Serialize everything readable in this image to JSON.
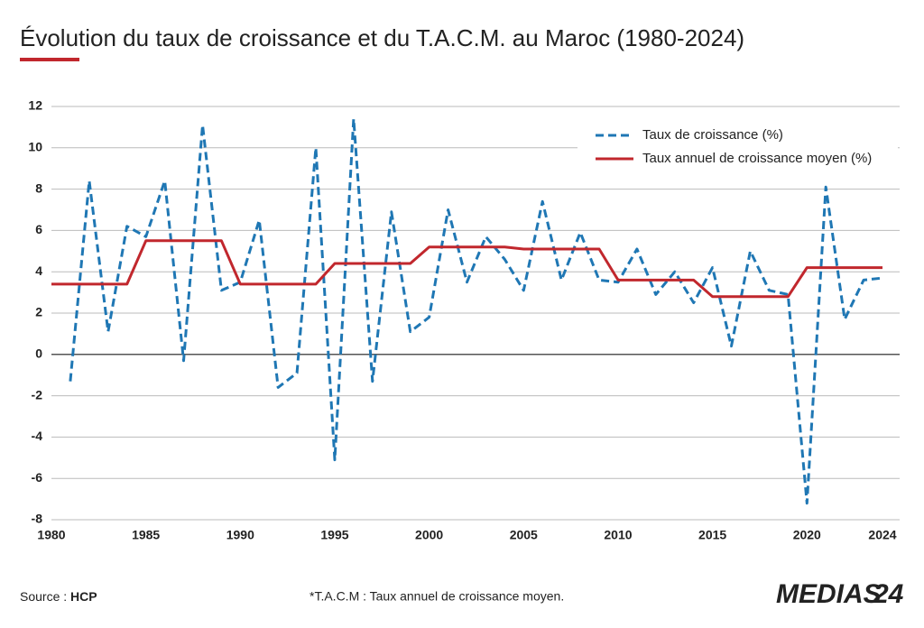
{
  "chart_data": {
    "type": "line",
    "title": "Évolution du taux de croissance et du T.A.C.M. au Maroc (1980-2024)",
    "x": [
      1980,
      1981,
      1982,
      1983,
      1984,
      1985,
      1986,
      1987,
      1988,
      1989,
      1990,
      1991,
      1992,
      1993,
      1994,
      1995,
      1996,
      1997,
      1998,
      1999,
      2000,
      2001,
      2002,
      2003,
      2004,
      2005,
      2006,
      2007,
      2008,
      2009,
      2010,
      2011,
      2012,
      2013,
      2014,
      2015,
      2016,
      2017,
      2018,
      2019,
      2020,
      2021,
      2022,
      2023,
      2024
    ],
    "series": [
      {
        "name": "Taux de croissance (%)",
        "color": "#1f77b4",
        "dash": true,
        "values": [
          null,
          -1.3,
          8.4,
          1.1,
          6.2,
          5.7,
          8.4,
          -0.3,
          11.1,
          3.1,
          3.5,
          6.5,
          -1.6,
          -0.9,
          10.0,
          -5.1,
          11.4,
          -1.3,
          6.9,
          1.1,
          1.8,
          7.0,
          3.5,
          5.7,
          4.6,
          3.1,
          7.4,
          3.6,
          5.9,
          3.6,
          3.5,
          5.1,
          2.9,
          4.0,
          2.5,
          4.2,
          0.4,
          5.0,
          3.1,
          2.9,
          -7.2,
          8.1,
          1.7,
          3.6,
          3.7
        ]
      },
      {
        "name": "Taux annuel de croissance moyen (%)",
        "color": "#c1272d",
        "dash": false,
        "values": [
          3.4,
          3.4,
          3.4,
          3.4,
          3.4,
          5.5,
          5.5,
          5.5,
          5.5,
          5.5,
          3.4,
          3.4,
          3.4,
          3.4,
          3.4,
          4.4,
          4.4,
          4.4,
          4.4,
          4.4,
          5.2,
          5.2,
          5.2,
          5.2,
          5.2,
          5.1,
          5.1,
          5.1,
          5.1,
          5.1,
          3.6,
          3.6,
          3.6,
          3.6,
          3.6,
          2.8,
          2.8,
          2.8,
          2.8,
          2.8,
          4.2,
          4.2,
          4.2,
          4.2,
          4.2
        ]
      }
    ],
    "xlim": [
      1980,
      2024
    ],
    "xticks": [
      1980,
      1985,
      1990,
      1995,
      2000,
      2005,
      2010,
      2015,
      2020,
      2024
    ],
    "ylim": [
      -8,
      12
    ],
    "yticks": [
      -8,
      -6,
      -4,
      -2,
      0,
      2,
      4,
      6,
      8,
      10,
      12
    ],
    "grid": true,
    "legend": "top-right",
    "source_label": "Source : ",
    "source": "HCP",
    "footnote": "*T.A.C.M : Taux annuel de croissance moyen.",
    "logo": "MEDIAS",
    "logo_number": "24"
  }
}
